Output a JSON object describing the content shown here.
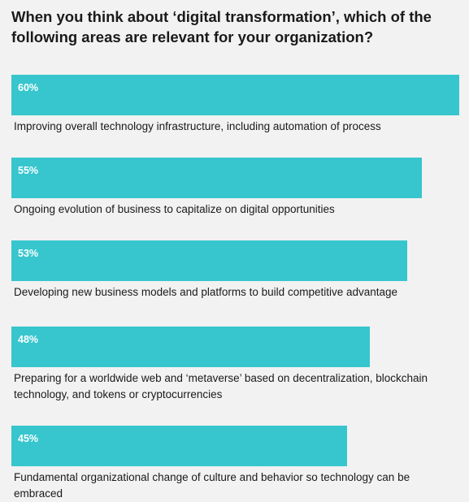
{
  "title": "When you think about ‘digital transformation’, which of the following areas are relevant for your organization?",
  "chart_data": {
    "type": "bar",
    "orientation": "horizontal",
    "title": "When you think about ‘digital transformation’, which of the following areas are relevant for your organization?",
    "categories": [
      "Improving overall technology infrastructure, including automation of process",
      "Ongoing evolution of business to capitalize on digital opportunities",
      "Developing new business models and platforms to build competitive advantage",
      "Preparing for a worldwide web and ‘metaverse’ based on decentralization, blockchain technology, and tokens or cryptocurrencies",
      "Fundamental organizational change of culture and behavior so technology can be embraced"
    ],
    "values": [
      60,
      55,
      53,
      48,
      45
    ],
    "value_labels": [
      "60%",
      "55%",
      "53%",
      "48%",
      "45%"
    ],
    "unit": "%",
    "bar_color": "#37c6cd",
    "grid": false
  }
}
